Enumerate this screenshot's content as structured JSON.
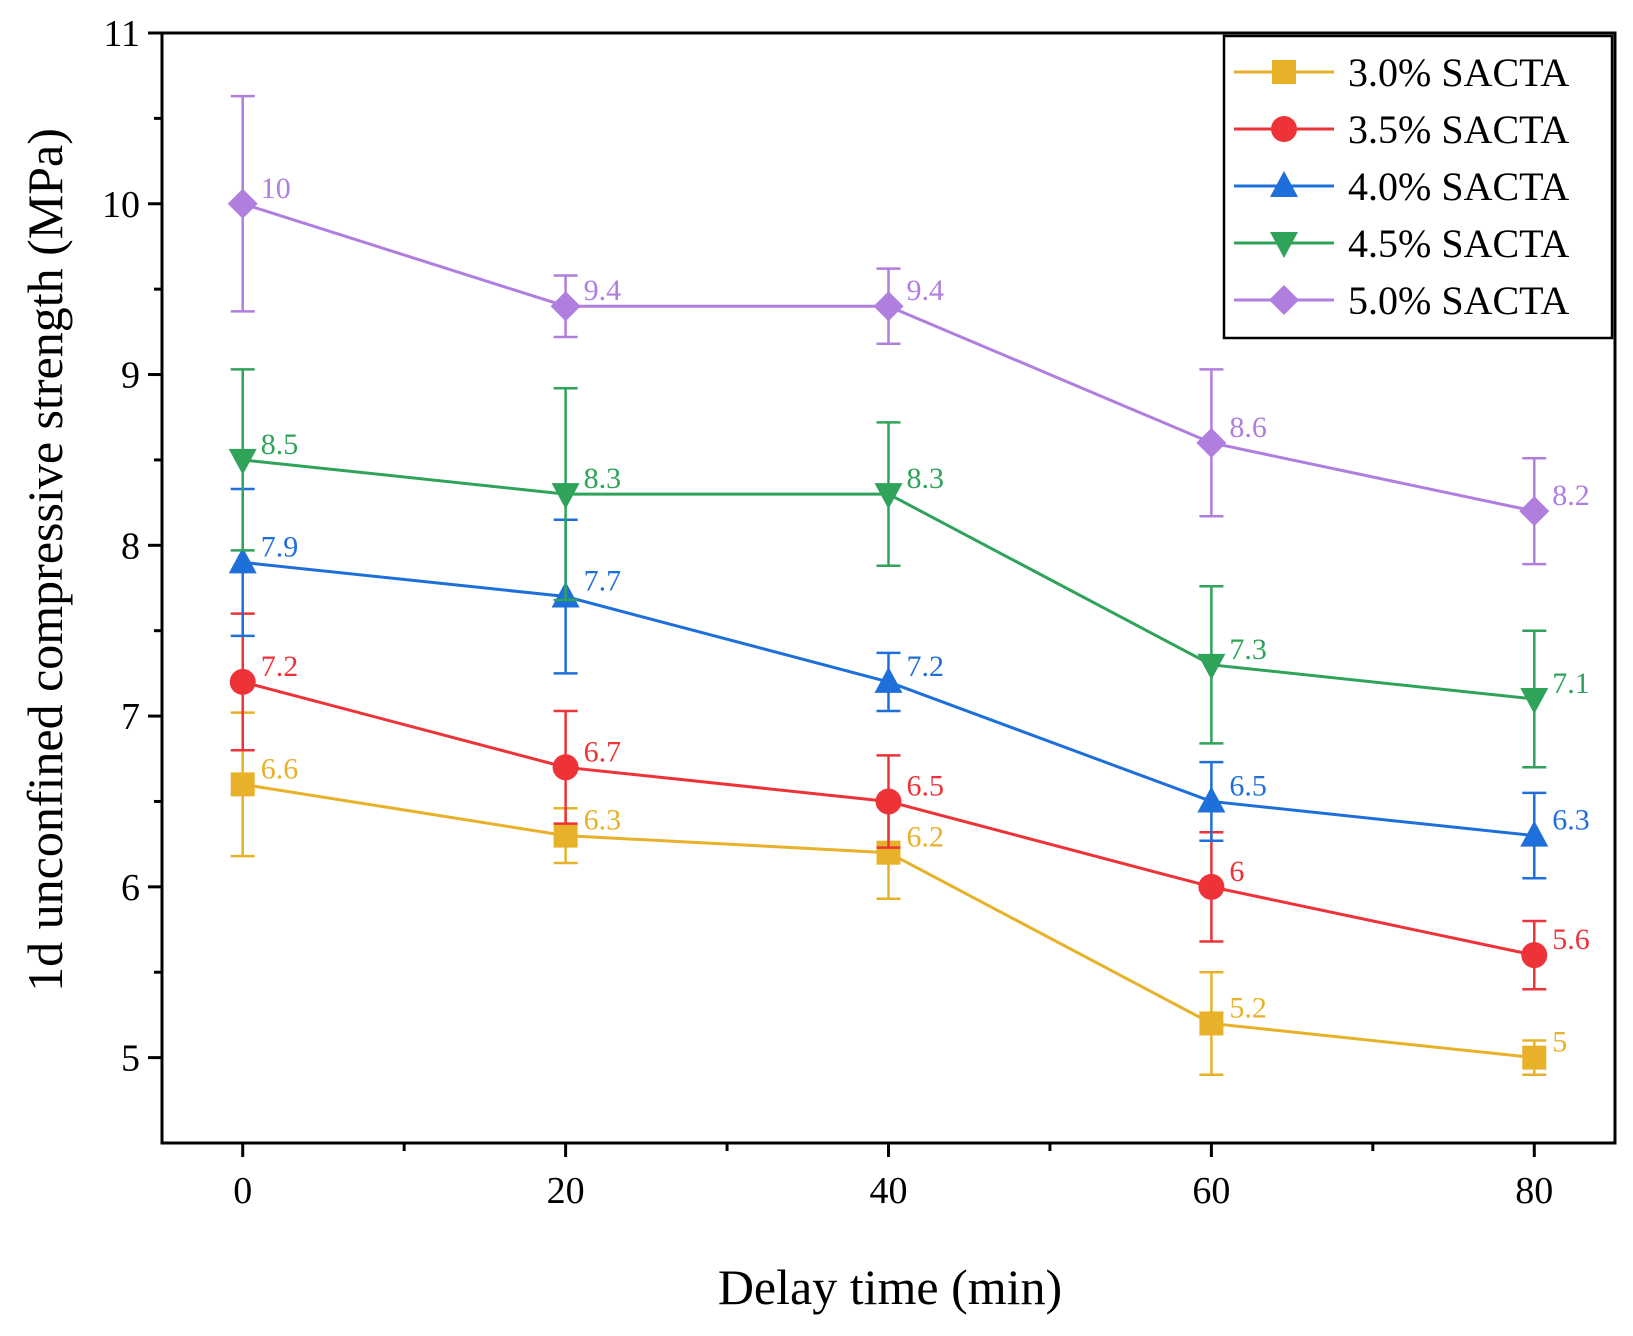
{
  "chart_data": {
    "type": "line",
    "title": "",
    "xlabel": "Delay time (min)",
    "ylabel": "1d unconfined compressive strength (MPa)",
    "x": [
      0,
      20,
      40,
      60,
      80
    ],
    "xlim": [
      -5,
      85
    ],
    "ylim": [
      4.5,
      11
    ],
    "xticks": [
      "0",
      "20",
      "40",
      "60",
      "80"
    ],
    "yticks": [
      "5",
      "6",
      "7",
      "8",
      "9",
      "10",
      "11"
    ],
    "legend_position": "top-right",
    "series": [
      {
        "name": "3.0% SACTA",
        "color": "#E8B12A",
        "marker": "square",
        "values": [
          6.6,
          6.3,
          6.2,
          5.2,
          5.0
        ],
        "errors": [
          0.42,
          0.16,
          0.27,
          0.3,
          0.1
        ],
        "labels": [
          "6.6",
          "6.3",
          "6.2",
          "5.2",
          "5"
        ]
      },
      {
        "name": "3.5% SACTA",
        "color": "#EE3338",
        "marker": "circle",
        "values": [
          7.2,
          6.7,
          6.5,
          6.0,
          5.6
        ],
        "errors": [
          0.4,
          0.33,
          0.27,
          0.32,
          0.2
        ],
        "labels": [
          "7.2",
          "6.7",
          "6.5",
          "6",
          "5.6"
        ]
      },
      {
        "name": "4.0% SACTA",
        "color": "#1F6FDB",
        "marker": "triangle-up",
        "values": [
          7.9,
          7.7,
          7.2,
          6.5,
          6.3
        ],
        "errors": [
          0.43,
          0.45,
          0.17,
          0.23,
          0.25
        ],
        "labels": [
          "7.9",
          "7.7",
          "7.2",
          "6.5",
          "6.3"
        ]
      },
      {
        "name": "4.5% SACTA",
        "color": "#2FA35A",
        "marker": "triangle-down",
        "values": [
          8.5,
          8.3,
          8.3,
          7.3,
          7.1
        ],
        "errors": [
          0.53,
          0.62,
          0.42,
          0.46,
          0.4
        ],
        "labels": [
          "8.5",
          "8.3",
          "8.3",
          "7.3",
          "7.1"
        ]
      },
      {
        "name": "5.0% SACTA",
        "color": "#B07EDF",
        "marker": "diamond",
        "values": [
          10.0,
          9.4,
          9.4,
          8.6,
          8.2
        ],
        "errors": [
          0.63,
          0.18,
          0.22,
          0.43,
          0.31
        ],
        "labels": [
          "10",
          "9.4",
          "9.4",
          "8.6",
          "8.2"
        ]
      }
    ]
  }
}
